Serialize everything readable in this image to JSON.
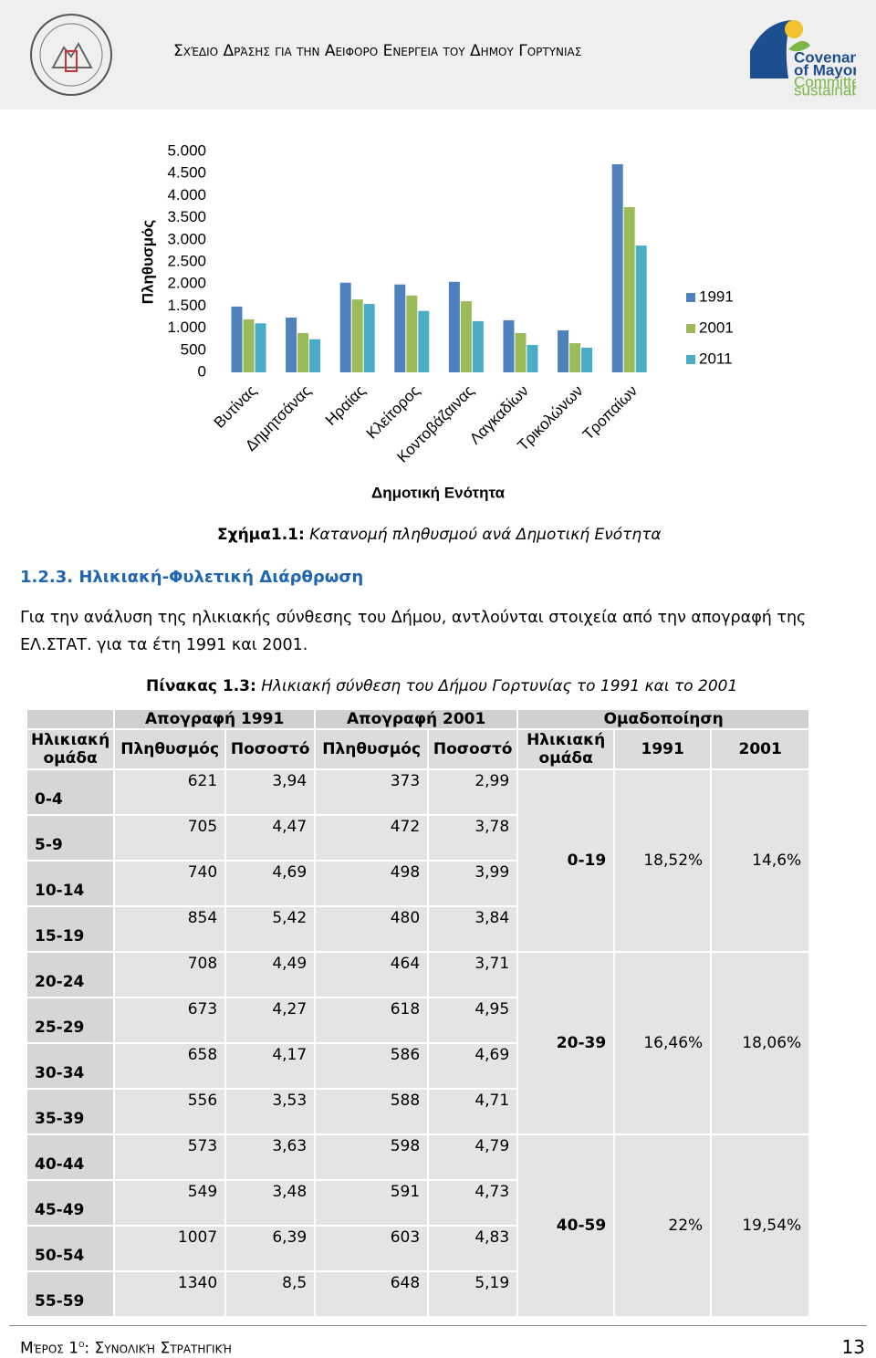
{
  "header": {
    "title": "Σχέδιο Δράσης για την Αειφορο Ενεργεια του Δημου Γορτυνιας",
    "logo": [
      "Covenant",
      "of Mayors",
      "Committed to local",
      "sustainable energy"
    ]
  },
  "chart_data": {
    "type": "bar",
    "y_label": "Πληθυσμός",
    "x_label": "Δημοτική Ενότητα",
    "categories": [
      "Βυτίνας",
      "Δημητσάνας",
      "Ηραίας",
      "Κλείτορος",
      "Κοντοβάζαινας",
      "Λαγκαδίων",
      "Τρικολώνων",
      "Τροπαίων"
    ],
    "series": [
      {
        "name": "1991",
        "color": "#4f81bd",
        "values": [
          1490,
          1240,
          2030,
          1990,
          2050,
          1180,
          950,
          4710
        ]
      },
      {
        "name": "2001",
        "color": "#9bbb59",
        "values": [
          1200,
          890,
          1650,
          1740,
          1610,
          890,
          660,
          3740
        ]
      },
      {
        "name": "2011",
        "color": "#4bacc6",
        "values": [
          1110,
          750,
          1550,
          1390,
          1160,
          620,
          560,
          2870
        ]
      }
    ],
    "ylim": [
      0,
      5000
    ],
    "yticks": [
      0,
      500,
      {
        "value": 1000,
        "label": "1.000"
      },
      {
        "value": 1500,
        "label": "1.500"
      },
      {
        "value": 2000,
        "label": "2.000"
      },
      {
        "value": 2500,
        "label": "2.500"
      },
      {
        "value": 3000,
        "label": "3.000"
      },
      {
        "value": 3500,
        "label": "3.500"
      },
      {
        "value": 4000,
        "label": "4.000"
      },
      {
        "value": 4500,
        "label": "4.500"
      },
      {
        "value": 5000,
        "label": "5.000"
      }
    ],
    "legend": "right",
    "grid": false
  },
  "caption": {
    "label": "Σχήμα1.1:",
    "text": "Κατανομή πληθυσμού ανά Δημοτική Ενότητα"
  },
  "section": "1.2.3. Ηλικιακή-Φυλετική Διάρθρωση",
  "paragraph": "Για την ανάλυση της ηλικιακής σύνθεσης του Δήμου, αντλούνται στοιχεία από την απογραφή της ΕΛ.ΣΤΑΤ. για τα έτη 1991 και 2001.",
  "table_caption": {
    "label": "Πίνακας 1.3:",
    "text": "Ηλικιακή σύνθεση του Δήμου Γορτυνίας το 1991 και το 2001"
  },
  "table": {
    "header_top": [
      "Απογραφή 1991",
      "Απογραφή 2001",
      "Ομαδοποίηση"
    ],
    "header": [
      "Ηλικιακή ομάδα",
      "Πληθυσμός",
      "Ποσοστό",
      "Πληθυσμός",
      "Ποσοστό",
      "Ηλικιακή ομάδα",
      "1991",
      "2001"
    ],
    "rows": [
      [
        "0-4",
        "621",
        "3,94",
        "373",
        "2,99"
      ],
      [
        "5-9",
        "705",
        "4,47",
        "472",
        "3,78"
      ],
      [
        "10-14",
        "740",
        "4,69",
        "498",
        "3,99"
      ],
      [
        "15-19",
        "854",
        "5,42",
        "480",
        "3,84"
      ],
      [
        "20-24",
        "708",
        "4,49",
        "464",
        "3,71"
      ],
      [
        "25-29",
        "673",
        "4,27",
        "618",
        "4,95"
      ],
      [
        "30-34",
        "658",
        "4,17",
        "586",
        "4,69"
      ],
      [
        "35-39",
        "556",
        "3,53",
        "588",
        "4,71"
      ],
      [
        "40-44",
        "573",
        "3,63",
        "598",
        "4,79"
      ],
      [
        "45-49",
        "549",
        "3,48",
        "591",
        "4,73"
      ],
      [
        "50-54",
        "1007",
        "6,39",
        "603",
        "4,83"
      ],
      [
        "55-59",
        "1340",
        "8,5",
        "648",
        "5,19"
      ]
    ],
    "groups": [
      [
        "0-19",
        "18,52%",
        "14,6%"
      ],
      [
        "20-39",
        "16,46%",
        "18,06%"
      ],
      [
        "40-59",
        "22%",
        "19,54%"
      ]
    ]
  },
  "footer": {
    "part": "Μέρος 1",
    "sup": "ο",
    "text": ": Συνολική Στρατηγική",
    "page": "13"
  }
}
